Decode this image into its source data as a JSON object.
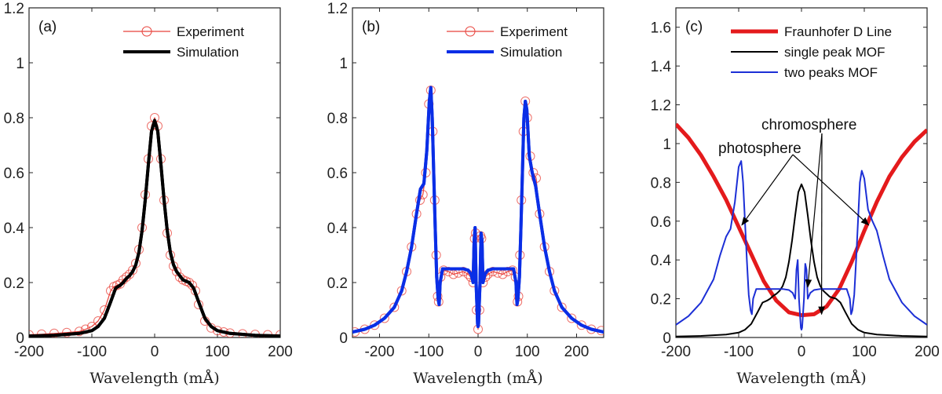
{
  "chart_data": [
    {
      "type": "line",
      "panel_label": "(a)",
      "xlabel": "Wavelength (mÅ)",
      "ylabel": "",
      "xlim": [
        -200,
        200
      ],
      "ylim": [
        0,
        1.2
      ],
      "xticks": [
        -200,
        -100,
        0,
        100,
        200
      ],
      "yticks": [
        0,
        0.2,
        0.4,
        0.6,
        0.8,
        1,
        1.2
      ],
      "xtick_labels": [
        "-200",
        "-100",
        "0",
        "100",
        "200"
      ],
      "ytick_labels": [
        "0",
        "0.2",
        "0.4",
        "0.6",
        "0.8",
        "1",
        "1.2"
      ],
      "legend": [
        "Experiment",
        "Simulation"
      ],
      "series": [
        {
          "name": "Experiment",
          "color": "#e8413a",
          "style": "line+circle",
          "x": [
            -200,
            -180,
            -160,
            -140,
            -120,
            -110,
            -100,
            -90,
            -80,
            -70,
            -65,
            -60,
            -55,
            -50,
            -45,
            -40,
            -35,
            -30,
            -25,
            -20,
            -15,
            -10,
            -5,
            0,
            5,
            10,
            15,
            20,
            25,
            30,
            35,
            40,
            45,
            50,
            55,
            60,
            65,
            70,
            80,
            90,
            100,
            110,
            120,
            140,
            160,
            180,
            200
          ],
          "y": [
            0.01,
            0.012,
            0.015,
            0.018,
            0.022,
            0.03,
            0.04,
            0.06,
            0.1,
            0.17,
            0.185,
            0.19,
            0.195,
            0.21,
            0.22,
            0.23,
            0.245,
            0.27,
            0.32,
            0.4,
            0.52,
            0.65,
            0.77,
            0.8,
            0.77,
            0.65,
            0.5,
            0.38,
            0.3,
            0.26,
            0.24,
            0.22,
            0.21,
            0.205,
            0.2,
            0.19,
            0.17,
            0.12,
            0.06,
            0.035,
            0.025,
            0.02,
            0.016,
            0.013,
            0.011,
            0.01,
            0.01
          ]
        },
        {
          "name": "Simulation",
          "color": "#000000",
          "style": "line",
          "x": [
            -200,
            -160,
            -120,
            -100,
            -90,
            -80,
            -70,
            -62,
            -55,
            -50,
            -45,
            -40,
            -35,
            -30,
            -25,
            -20,
            -15,
            -10,
            -5,
            0,
            5,
            10,
            15,
            20,
            25,
            30,
            35,
            40,
            45,
            50,
            55,
            62,
            70,
            80,
            90,
            100,
            120,
            160,
            200
          ],
          "y": [
            0.005,
            0.008,
            0.015,
            0.025,
            0.04,
            0.07,
            0.13,
            0.18,
            0.19,
            0.2,
            0.215,
            0.225,
            0.24,
            0.265,
            0.31,
            0.39,
            0.5,
            0.63,
            0.75,
            0.79,
            0.75,
            0.63,
            0.5,
            0.39,
            0.31,
            0.265,
            0.24,
            0.225,
            0.21,
            0.205,
            0.2,
            0.18,
            0.13,
            0.07,
            0.04,
            0.025,
            0.015,
            0.008,
            0.005
          ]
        }
      ]
    },
    {
      "type": "line",
      "panel_label": "(b)",
      "xlabel": "Wavelength (mÅ)",
      "ylabel": "",
      "xlim": [
        -255,
        255
      ],
      "ylim": [
        0,
        1.2
      ],
      "xticks": [
        -200,
        -100,
        0,
        100,
        200
      ],
      "yticks": [
        0,
        0.2,
        0.4,
        0.6,
        0.8,
        1,
        1.2
      ],
      "xtick_labels": [
        "-200",
        "-100",
        "0",
        "100",
        "200"
      ],
      "ytick_labels": [
        "0",
        "0.2",
        "0.4",
        "0.6",
        "0.8",
        "1",
        "1.2"
      ],
      "legend": [
        "Experiment",
        "Simulation"
      ],
      "series": [
        {
          "name": "Experiment",
          "color": "#e8413a",
          "style": "line+circle",
          "x": [
            -250,
            -230,
            -210,
            -190,
            -170,
            -155,
            -145,
            -135,
            -125,
            -118,
            -112,
            -106,
            -100,
            -96,
            -92,
            -88,
            -85,
            -82,
            -80,
            -76,
            -70,
            -60,
            -50,
            -40,
            -30,
            -20,
            -15,
            -10,
            -7,
            -5,
            -3,
            0,
            3,
            5,
            7,
            10,
            15,
            20,
            30,
            40,
            50,
            60,
            70,
            76,
            80,
            82,
            85,
            88,
            92,
            96,
            100,
            106,
            112,
            118,
            125,
            135,
            145,
            155,
            170,
            190,
            210,
            230,
            250
          ],
          "y": [
            0.02,
            0.03,
            0.045,
            0.07,
            0.11,
            0.17,
            0.24,
            0.33,
            0.45,
            0.5,
            0.52,
            0.6,
            0.85,
            0.9,
            0.75,
            0.5,
            0.3,
            0.15,
            0.13,
            0.22,
            0.245,
            0.24,
            0.23,
            0.235,
            0.24,
            0.23,
            0.22,
            0.2,
            0.36,
            0.38,
            0.1,
            0.03,
            0.1,
            0.37,
            0.36,
            0.2,
            0.22,
            0.23,
            0.24,
            0.235,
            0.23,
            0.24,
            0.245,
            0.22,
            0.13,
            0.15,
            0.3,
            0.5,
            0.75,
            0.86,
            0.8,
            0.66,
            0.6,
            0.58,
            0.45,
            0.33,
            0.24,
            0.17,
            0.11,
            0.07,
            0.045,
            0.03,
            0.025
          ]
        },
        {
          "name": "Simulation",
          "color": "#0a2ee6",
          "style": "line",
          "x": [
            -255,
            -230,
            -210,
            -190,
            -170,
            -155,
            -145,
            -135,
            -125,
            -117,
            -110,
            -104,
            -99,
            -96,
            -93,
            -90,
            -87,
            -84,
            -81,
            -79,
            -77,
            -72,
            -60,
            -45,
            -30,
            -20,
            -14,
            -10,
            -8,
            -6,
            -4,
            -1,
            0,
            1,
            4,
            6,
            8,
            10,
            14,
            20,
            30,
            45,
            60,
            72,
            77,
            79,
            81,
            84,
            87,
            90,
            93,
            96,
            99,
            104,
            110,
            117,
            125,
            135,
            145,
            155,
            170,
            190,
            210,
            230,
            255
          ],
          "y": [
            0.02,
            0.03,
            0.045,
            0.07,
            0.11,
            0.17,
            0.24,
            0.33,
            0.45,
            0.54,
            0.56,
            0.68,
            0.86,
            0.91,
            0.8,
            0.6,
            0.4,
            0.22,
            0.14,
            0.12,
            0.2,
            0.25,
            0.25,
            0.25,
            0.25,
            0.245,
            0.23,
            0.2,
            0.35,
            0.4,
            0.2,
            0.05,
            0.04,
            0.05,
            0.2,
            0.38,
            0.35,
            0.2,
            0.23,
            0.245,
            0.25,
            0.25,
            0.25,
            0.25,
            0.2,
            0.12,
            0.14,
            0.22,
            0.4,
            0.6,
            0.8,
            0.86,
            0.83,
            0.66,
            0.6,
            0.55,
            0.45,
            0.33,
            0.24,
            0.17,
            0.11,
            0.07,
            0.045,
            0.03,
            0.02
          ]
        }
      ]
    },
    {
      "type": "line",
      "panel_label": "(c)",
      "xlabel": "Wavelength (mÅ)",
      "ylabel": "",
      "xlim": [
        -200,
        200
      ],
      "ylim": [
        0,
        1.7
      ],
      "xticks": [
        -200,
        -100,
        0,
        100,
        200
      ],
      "yticks": [
        0,
        0.2,
        0.4,
        0.6,
        0.8,
        1,
        1.2,
        1.4,
        1.6
      ],
      "xtick_labels": [
        "-200",
        "-100",
        "0",
        "100",
        "200"
      ],
      "ytick_labels": [
        "0",
        "0.2",
        "0.4",
        "0.6",
        "0.8",
        "1",
        "1.2",
        "1.4",
        "1.6"
      ],
      "legend": [
        "Fraunhofer D Line",
        "single peak MOF",
        "two peaks MOF"
      ],
      "annotations": [
        {
          "text": "photosphere",
          "points_to": [
            [
              -95,
              0.58
            ],
            [
              107,
              0.58
            ]
          ]
        },
        {
          "text": "chromosphere",
          "points_to": [
            [
              32,
              0.12
            ],
            [
              10,
              0.26
            ]
          ]
        }
      ],
      "series": [
        {
          "name": "Fraunhofer D Line",
          "color": "#e41a1c",
          "style": "thick-line",
          "x": [
            -200,
            -180,
            -160,
            -140,
            -120,
            -100,
            -80,
            -60,
            -40,
            -20,
            0,
            20,
            40,
            60,
            80,
            100,
            120,
            140,
            160,
            180,
            200
          ],
          "y": [
            1.1,
            1.03,
            0.94,
            0.83,
            0.71,
            0.57,
            0.43,
            0.29,
            0.19,
            0.13,
            0.115,
            0.12,
            0.16,
            0.25,
            0.39,
            0.55,
            0.7,
            0.83,
            0.93,
            1.01,
            1.07
          ]
        },
        {
          "name": "single peak MOF",
          "color": "#000000",
          "style": "line",
          "x": [
            -200,
            -160,
            -120,
            -100,
            -90,
            -80,
            -70,
            -62,
            -55,
            -50,
            -45,
            -40,
            -35,
            -30,
            -25,
            -20,
            -15,
            -10,
            -5,
            0,
            5,
            10,
            15,
            20,
            25,
            30,
            35,
            40,
            45,
            50,
            55,
            62,
            70,
            80,
            90,
            100,
            120,
            160,
            200
          ],
          "y": [
            0.005,
            0.008,
            0.015,
            0.025,
            0.04,
            0.07,
            0.13,
            0.18,
            0.19,
            0.2,
            0.215,
            0.225,
            0.24,
            0.265,
            0.31,
            0.39,
            0.5,
            0.63,
            0.75,
            0.79,
            0.75,
            0.63,
            0.5,
            0.39,
            0.31,
            0.265,
            0.24,
            0.225,
            0.21,
            0.205,
            0.2,
            0.18,
            0.13,
            0.07,
            0.04,
            0.025,
            0.015,
            0.008,
            0.005
          ]
        },
        {
          "name": "two peaks MOF",
          "color": "#1c2fd6",
          "style": "line",
          "x": [
            -200,
            -180,
            -160,
            -140,
            -130,
            -120,
            -113,
            -106,
            -100,
            -96,
            -93,
            -90,
            -87,
            -84,
            -81,
            -79,
            -77,
            -72,
            -60,
            -45,
            -30,
            -20,
            -14,
            -10,
            -8,
            -6,
            -4,
            -1,
            0,
            1,
            4,
            6,
            8,
            10,
            14,
            20,
            30,
            45,
            60,
            72,
            77,
            79,
            81,
            84,
            87,
            90,
            93,
            96,
            100,
            106,
            113,
            120,
            130,
            140,
            160,
            180,
            200
          ],
          "y": [
            0.065,
            0.11,
            0.18,
            0.3,
            0.42,
            0.52,
            0.56,
            0.7,
            0.88,
            0.91,
            0.8,
            0.6,
            0.4,
            0.22,
            0.14,
            0.12,
            0.2,
            0.25,
            0.25,
            0.25,
            0.25,
            0.245,
            0.23,
            0.2,
            0.35,
            0.4,
            0.2,
            0.05,
            0.04,
            0.05,
            0.2,
            0.38,
            0.35,
            0.2,
            0.23,
            0.245,
            0.25,
            0.25,
            0.25,
            0.25,
            0.2,
            0.12,
            0.14,
            0.22,
            0.4,
            0.6,
            0.8,
            0.86,
            0.82,
            0.66,
            0.6,
            0.55,
            0.42,
            0.3,
            0.18,
            0.11,
            0.065
          ]
        }
      ]
    }
  ]
}
